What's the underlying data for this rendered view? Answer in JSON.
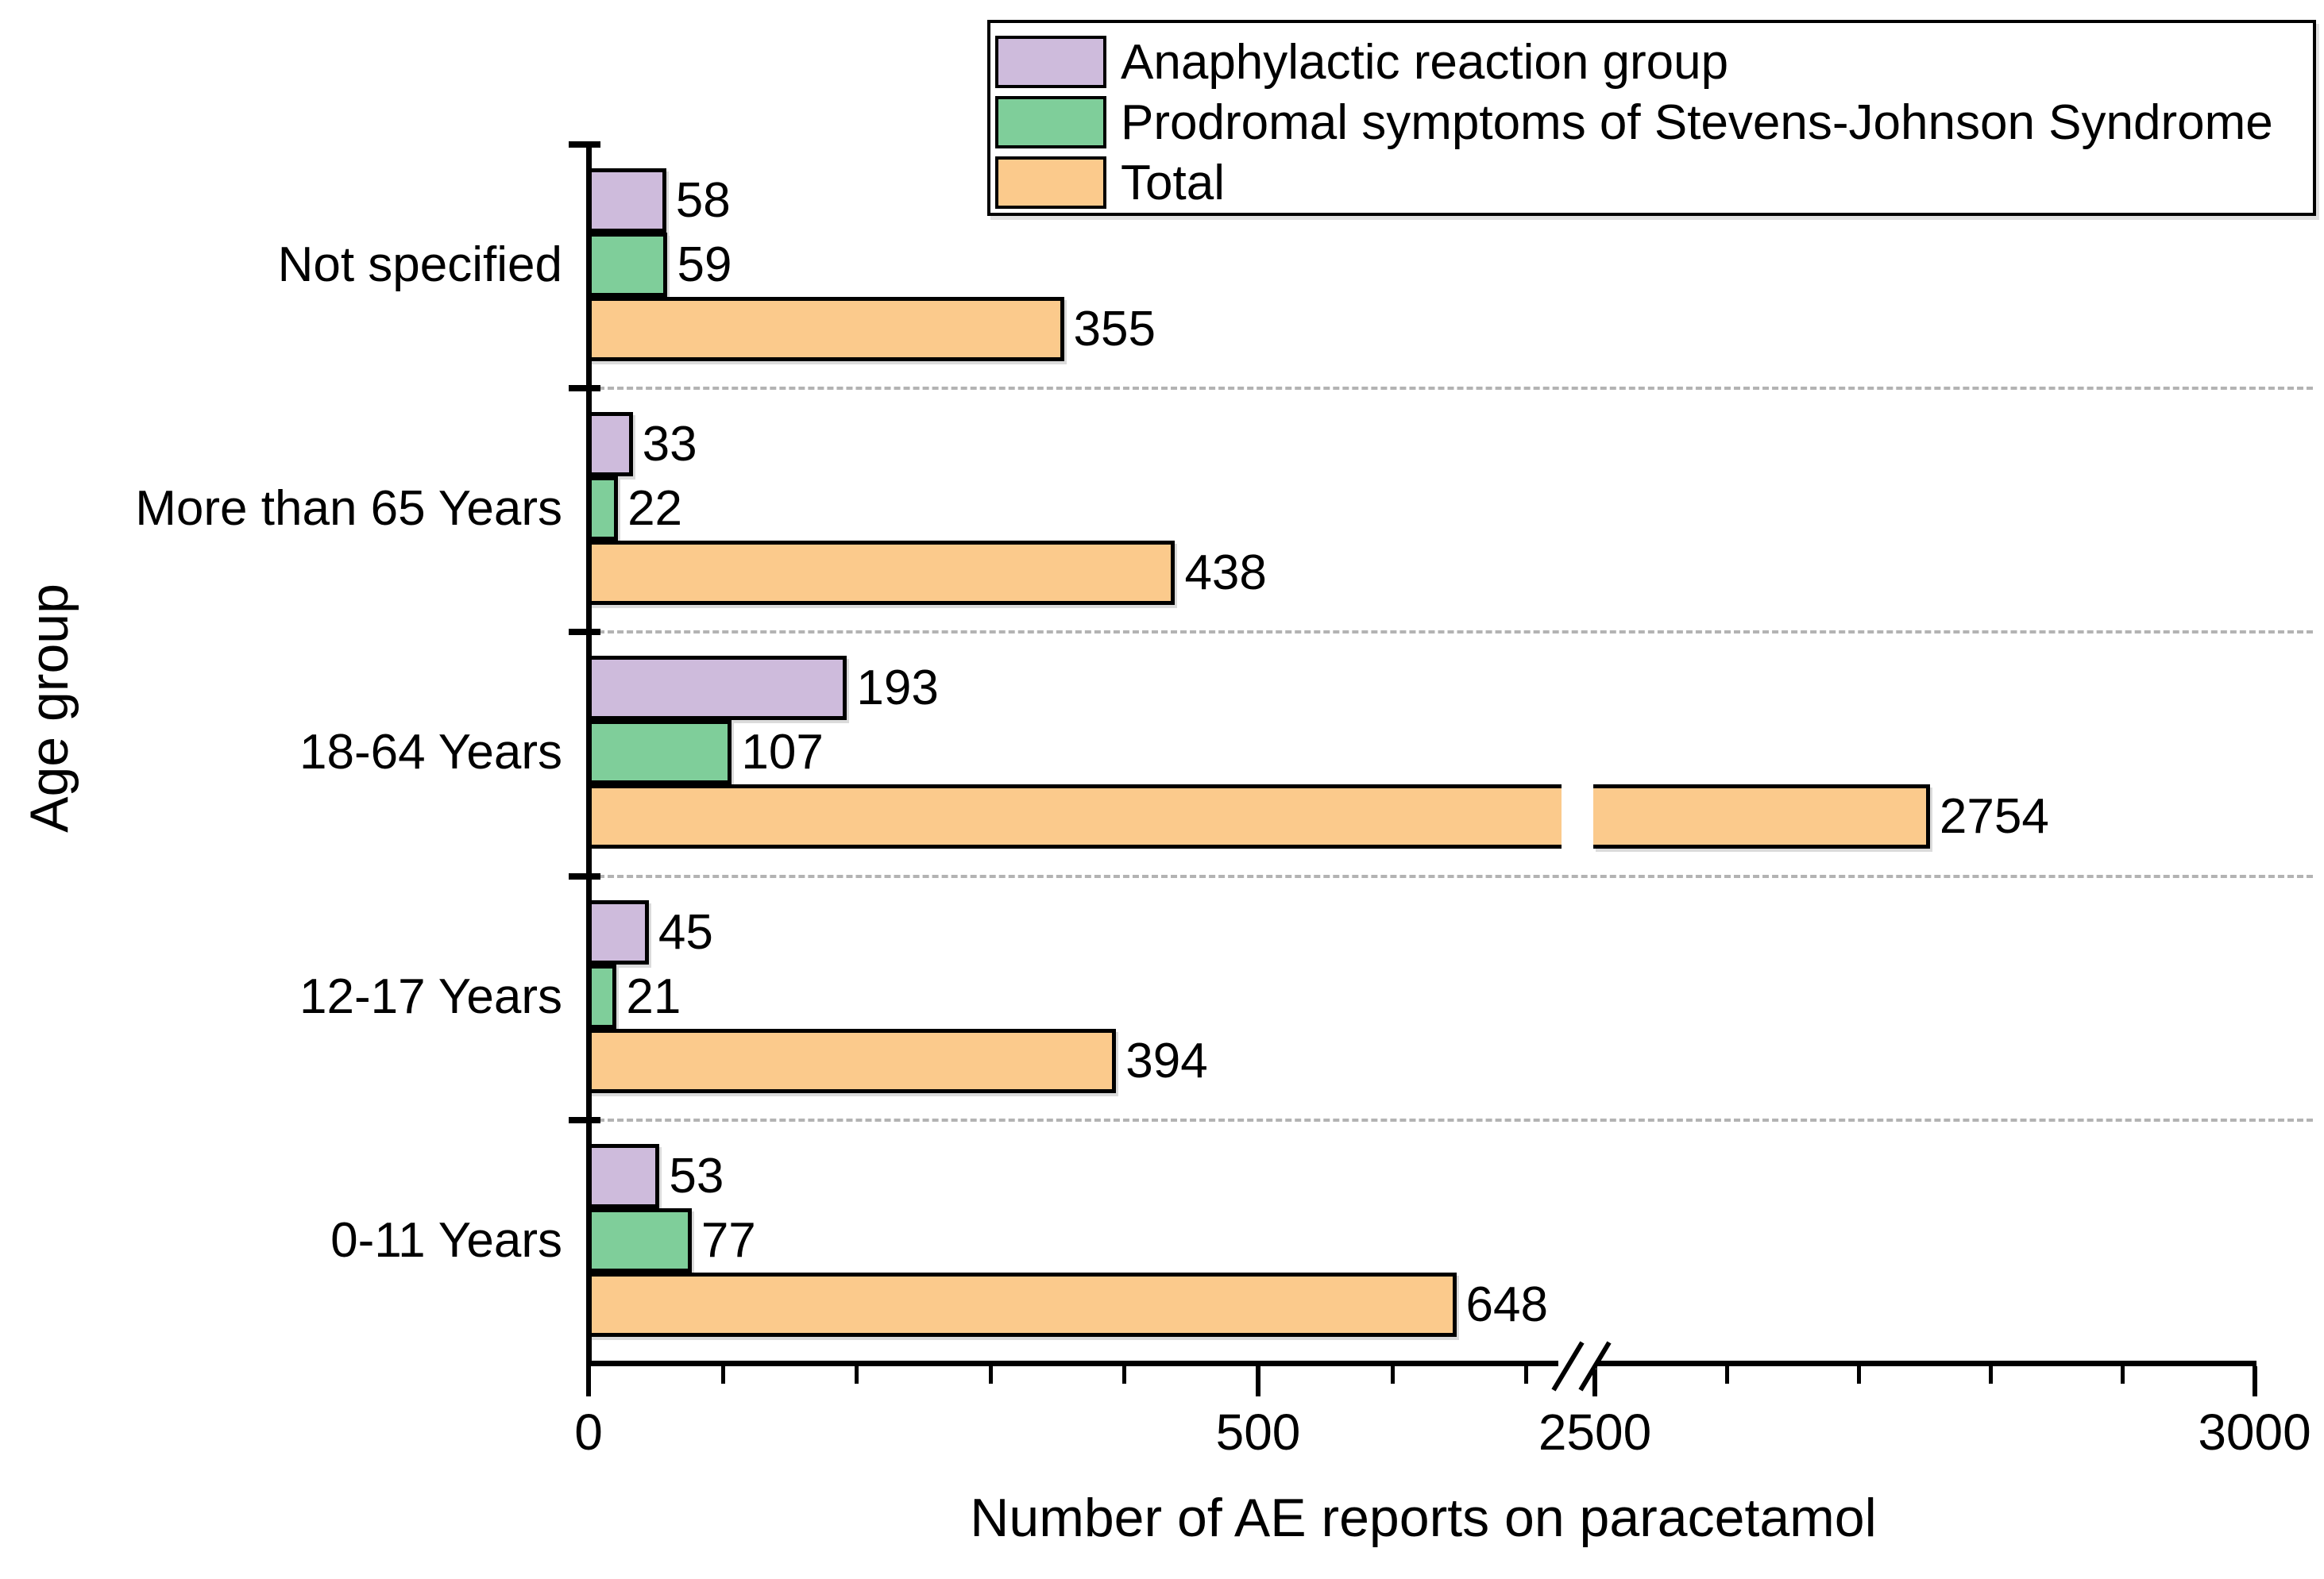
{
  "chart_data": {
    "type": "bar",
    "orientation": "horizontal",
    "xlabel": "Number of AE reports on paracetamol",
    "ylabel": "Age group",
    "categories": [
      "Not specified",
      "More than 65 Years",
      "18-64 Years",
      "12-17 Years",
      "0-11 Years"
    ],
    "series": [
      {
        "name": "Anaphylactic reaction group",
        "color": "#CEBBDC",
        "pattern": "pink-orange-dots",
        "values": [
          58,
          33,
          193,
          45,
          53
        ]
      },
      {
        "name": "Prodromal symptoms of Stevens-Johnson Syndrome",
        "color": "#7FCE9A",
        "pattern": "solid",
        "values": [
          59,
          22,
          107,
          21,
          77
        ]
      },
      {
        "name": "Total",
        "color": "#FBCA8C",
        "pattern": "faint-dots",
        "values": [
          355,
          438,
          2754,
          394,
          648
        ]
      }
    ],
    "x_axis": {
      "major_ticks": [
        0,
        500,
        2500,
        3000
      ],
      "major_tick_labels": [
        "0",
        "500",
        "2500",
        "3000"
      ],
      "minor_ticks": [
        100,
        200,
        300,
        400,
        600,
        700,
        2600,
        2700,
        2800,
        2900
      ],
      "axis_break": {
        "pre_break_end_value": 735,
        "post_break_start_value": 2500
      }
    },
    "grid": "dashed horizontal separators between category groups",
    "legend_position": "top-right",
    "legend_entries": [
      "Anaphylactic reaction group",
      "Prodromal symptoms of Stevens-Johnson Syndrome",
      "Total"
    ],
    "value_labels_shown": true
  }
}
